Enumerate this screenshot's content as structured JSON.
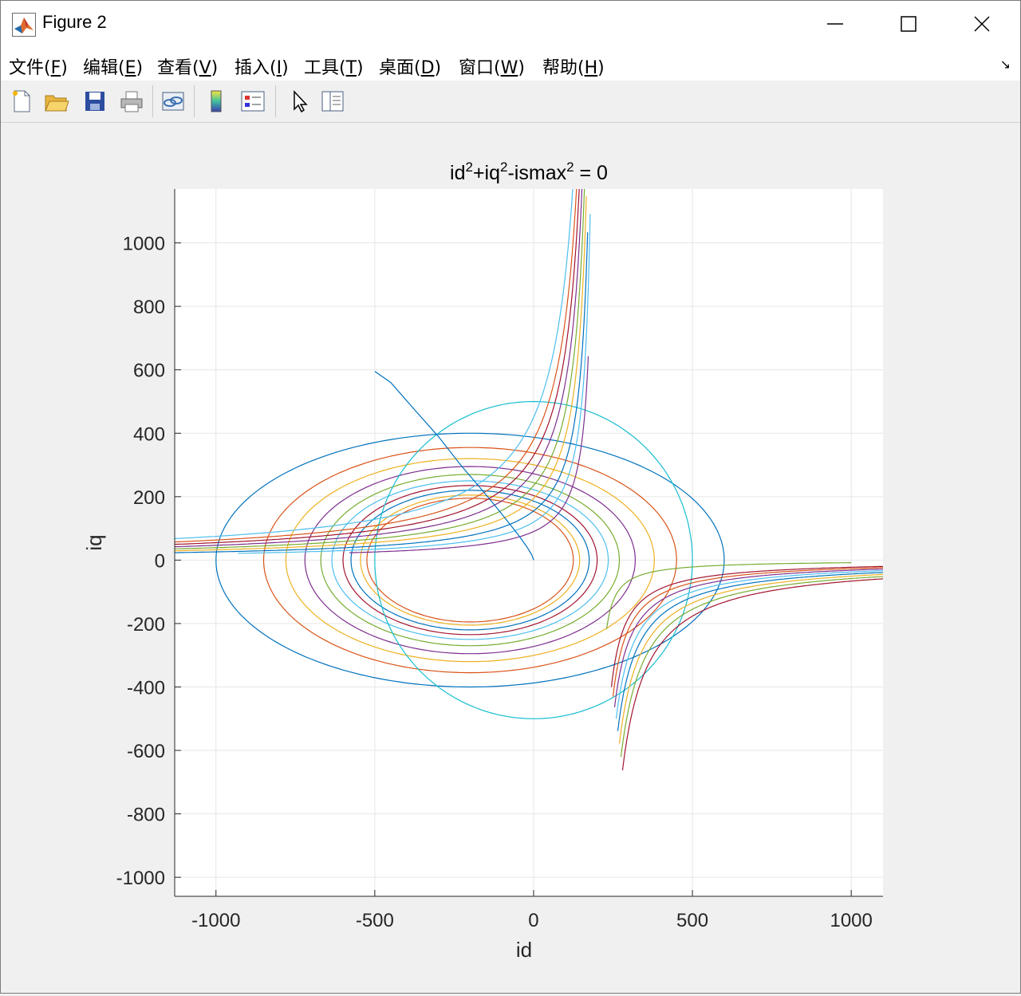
{
  "window": {
    "title": "Figure 2"
  },
  "menu": [
    {
      "label": "文件(",
      "key": "F",
      "end": ")"
    },
    {
      "label": "编辑(",
      "key": "E",
      "end": ")"
    },
    {
      "label": "查看(",
      "key": "V",
      "end": ")"
    },
    {
      "label": "插入(",
      "key": "I",
      "end": ")"
    },
    {
      "label": "工具(",
      "key": "T",
      "end": ")"
    },
    {
      "label": "桌面(",
      "key": "D",
      "end": ")"
    },
    {
      "label": "窗口(",
      "key": "W",
      "end": ")"
    },
    {
      "label": "帮助(",
      "key": "H",
      "end": ")"
    }
  ],
  "toolbar": [
    "new-figure-icon",
    "open-file-icon",
    "save-icon",
    "print-icon",
    "link-plot-icon",
    "insert-colorbar-icon",
    "insert-legend-icon",
    "edit-plot-pointer-icon",
    "property-inspector-icon"
  ],
  "chart_data": {
    "type": "line",
    "title": "id²+iq²-ismax² = 0",
    "title_parts": {
      "a": "id",
      "b": "+iq",
      "c": "-ismax",
      "d": " = 0",
      "sup": "2"
    },
    "xlabel": "id",
    "ylabel": "iq",
    "xlim": [
      -1130,
      1100
    ],
    "ylim": [
      -1060,
      1170
    ],
    "xticks": [
      -1000,
      -500,
      0,
      500,
      1000
    ],
    "yticks": [
      -1000,
      -800,
      -600,
      -400,
      -200,
      0,
      200,
      400,
      600,
      800,
      1000
    ],
    "grid": true,
    "circle": {
      "name": "current limit circle",
      "center": [
        0,
        0
      ],
      "radius": 500,
      "color": "#17becf"
    },
    "voltage_ellipses": {
      "center": [
        -200,
        0
      ],
      "series": [
        {
          "a": 800,
          "b": 400,
          "color": "#0072bd"
        },
        {
          "a": 650,
          "b": 355,
          "color": "#d95319"
        },
        {
          "a": 580,
          "b": 320,
          "color": "#edb120"
        },
        {
          "a": 520,
          "b": 295,
          "color": "#7e2f8e"
        },
        {
          "a": 470,
          "b": 270,
          "color": "#77ac30"
        },
        {
          "a": 435,
          "b": 250,
          "color": "#4dbeee"
        },
        {
          "a": 400,
          "b": 235,
          "color": "#a2142f"
        },
        {
          "a": 375,
          "b": 220,
          "color": "#0072bd"
        },
        {
          "a": 345,
          "b": 205,
          "color": "#edb120"
        },
        {
          "a": 325,
          "b": 195,
          "color": "#d95319"
        }
      ]
    },
    "torque_hyperbolas_upper": {
      "asymptote_x": 200,
      "series": [
        {
          "k": 18000,
          "x_min": -580,
          "x_max": 172,
          "y_max": 800,
          "color": "#7e2f8e"
        },
        {
          "k": 24000,
          "x_min": -930,
          "x_max": 178,
          "y_max": 1180,
          "color": "#4dbeee"
        },
        {
          "k": 31000,
          "x_min": -1130,
          "x_max": 170,
          "y_max": 1180,
          "color": "#0072bd"
        },
        {
          "k": 39000,
          "x_min": -1130,
          "x_max": 166,
          "y_max": 1180,
          "color": "#edb120"
        },
        {
          "k": 47000,
          "x_min": -1130,
          "x_max": 162,
          "y_max": 1180,
          "color": "#77ac30"
        },
        {
          "k": 56000,
          "x_min": -1130,
          "x_max": 158,
          "y_max": 1180,
          "color": "#7e2f8e"
        },
        {
          "k": 66000,
          "x_min": -1130,
          "x_max": 154,
          "y_max": 1180,
          "color": "#a2142f"
        },
        {
          "k": 76000,
          "x_min": -1130,
          "x_max": 150,
          "y_max": 1180,
          "color": "#d95319"
        },
        {
          "k": 90000,
          "x_min": -1130,
          "x_max": 145,
          "y_max": 1180,
          "color": "#4dbeee"
        }
      ]
    },
    "torque_hyperbolas_lower": {
      "asymptote_x": 200,
      "series": [
        {
          "k": 6500,
          "x_start": 230,
          "x_end": 1000,
          "y_min": -800,
          "color": "#77ac30"
        },
        {
          "k": 18000,
          "x_start": 245,
          "x_end": 1100,
          "y_min": -1070,
          "color": "#a2142f"
        },
        {
          "k": 21500,
          "x_start": 250,
          "x_end": 1100,
          "y_min": -1070,
          "color": "#d95319"
        },
        {
          "k": 25500,
          "x_start": 255,
          "x_end": 1100,
          "y_min": -1070,
          "color": "#7e2f8e"
        },
        {
          "k": 30000,
          "x_start": 260,
          "x_end": 1100,
          "y_min": -1070,
          "color": "#4dbeee"
        },
        {
          "k": 35000,
          "x_start": 265,
          "x_end": 1100,
          "y_min": -1070,
          "color": "#0072bd"
        },
        {
          "k": 40500,
          "x_start": 270,
          "x_end": 1100,
          "y_min": -1070,
          "color": "#edb120"
        },
        {
          "k": 46500,
          "x_start": 275,
          "x_end": 1100,
          "y_min": -1070,
          "color": "#77ac30"
        },
        {
          "k": 53000,
          "x_start": 280,
          "x_end": 1100,
          "y_min": -1070,
          "color": "#a2142f"
        }
      ]
    },
    "mtpa_curve": {
      "color": "#0072bd",
      "points": [
        [
          0,
          0
        ],
        [
          -5,
          15
        ],
        [
          -20,
          40
        ],
        [
          -45,
          75
        ],
        [
          -80,
          120
        ],
        [
          -120,
          170
        ],
        [
          -170,
          230
        ],
        [
          -230,
          300
        ],
        [
          -300,
          390
        ],
        [
          -380,
          480
        ],
        [
          -450,
          560
        ],
        [
          -500,
          595
        ]
      ]
    }
  }
}
